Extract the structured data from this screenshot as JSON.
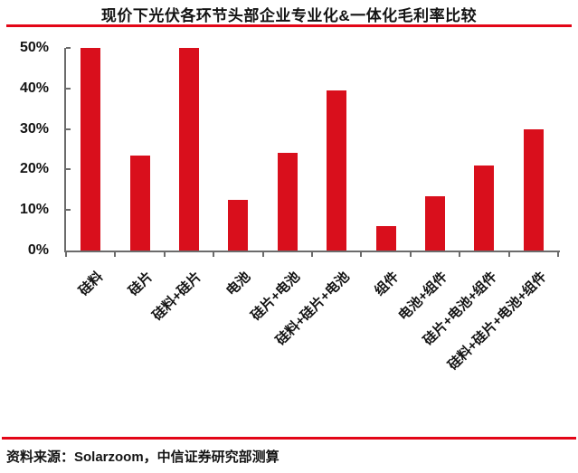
{
  "colors": {
    "bar": "#d90f1c",
    "rule": "#e30617",
    "axis": "#6b6b6b",
    "text": "#141414"
  },
  "source": {
    "text": "资料来源：Solarzoom，中信证券研究部测算"
  },
  "chart_data": {
    "type": "bar",
    "title": "现价下光伏各环节头部企业专业化&一体化毛利率比较",
    "categories": [
      "硅料",
      "硅片",
      "硅料+硅片",
      "电池",
      "硅片+电池",
      "硅料+硅片+电池",
      "组件",
      "电池+组件",
      "硅片+电池+组件",
      "硅料+硅片+电池+组件"
    ],
    "values": [
      50,
      23.5,
      50,
      12.5,
      24,
      39.5,
      6,
      13.5,
      21,
      30
    ],
    "xlabel": "",
    "ylabel": "",
    "ylim": [
      0,
      50
    ],
    "yticks": [
      0,
      10,
      20,
      30,
      40,
      50
    ],
    "ytick_suffix": "%",
    "grid": false,
    "legend": false,
    "bar_color": "#d90f1c",
    "x_tick_style": "category-boundaries",
    "x_label_rotation_deg": 45
  }
}
